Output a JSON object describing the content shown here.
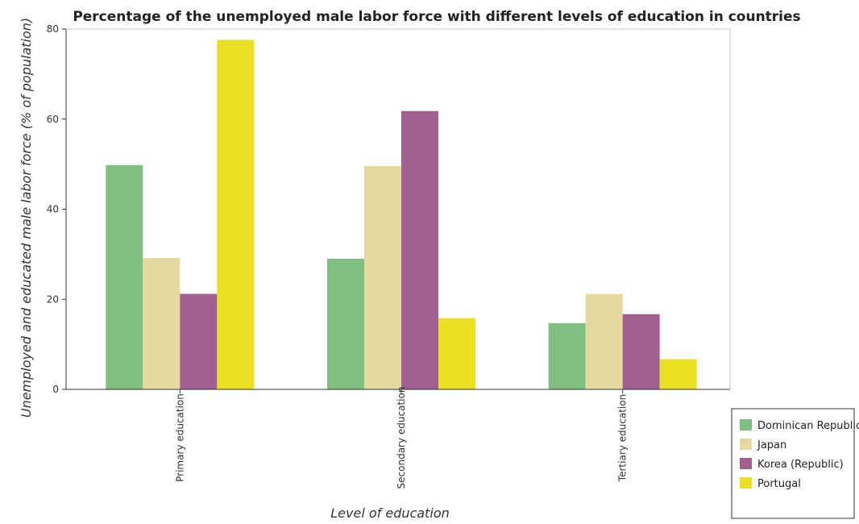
{
  "chart_data": {
    "type": "bar",
    "title": "Percentage of the unemployed male labor force with different levels of education in countries",
    "xlabel": "Level of education",
    "ylabel": "Unemployed and educated male labor force (% of population)",
    "categories": [
      "Primary education",
      "Secondary education",
      "Tertiary education"
    ],
    "ylim": [
      0,
      80
    ],
    "yticks": [
      0,
      20,
      40,
      60,
      80
    ],
    "legend_position": "bottom-right",
    "grid": false,
    "series": [
      {
        "name": "Dominican Republic",
        "color": "#7fbf7f",
        "values": [
          49.8,
          29.0,
          14.7
        ]
      },
      {
        "name": "Japan",
        "color": "#e6d9a0",
        "values": [
          29.2,
          49.6,
          21.2
        ]
      },
      {
        "name": "Korea (Republic)",
        "color": "#a06090",
        "values": [
          21.2,
          61.8,
          16.7
        ]
      },
      {
        "name": "Portugal",
        "color": "#e8e020",
        "values": [
          77.6,
          15.8,
          6.7
        ]
      }
    ]
  }
}
